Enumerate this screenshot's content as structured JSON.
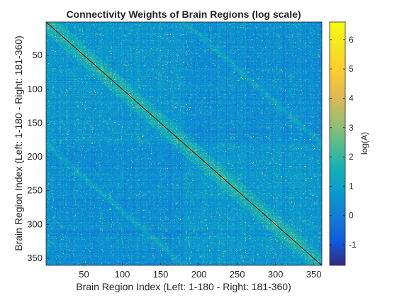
{
  "chart_data": {
    "type": "heatmap",
    "title": "Connectivity Weights of Brain Regions (log scale)",
    "xlabel": "Brain Region Index (Left: 1-180 - Right: 181-360)",
    "ylabel": "Brain Region Index (Left: 1-180 - Right: 181-360)",
    "colorbar_label": "log(A)",
    "colormap": "parula",
    "n_regions": 360,
    "xlim": [
      0.5,
      360.5
    ],
    "ylim": [
      0.5,
      360.5
    ],
    "y_reversed": true,
    "clim": [
      -1.7,
      6.6
    ],
    "diagonal_value": -1.7,
    "background_value_range": [
      -0.5,
      1.5
    ],
    "hemisphere_boundary": 180,
    "x_ticks": [
      50,
      100,
      150,
      200,
      250,
      300,
      350
    ],
    "y_ticks": [
      50,
      100,
      150,
      200,
      250,
      300,
      350
    ],
    "colorbar_ticks": [
      -1,
      0,
      1,
      2,
      3,
      4,
      5,
      6
    ],
    "grid": false,
    "legend": "none"
  }
}
